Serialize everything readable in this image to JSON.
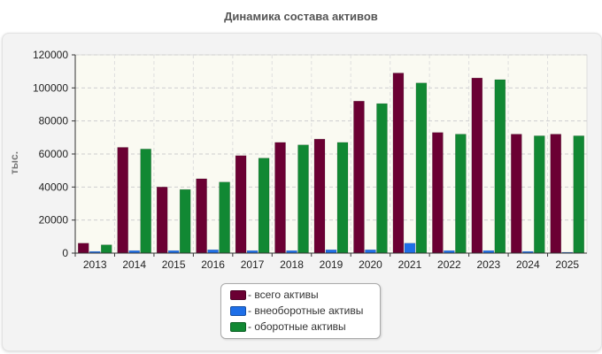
{
  "chart_data": {
    "type": "bar",
    "title": "Динамика состава активов",
    "xlabel": "",
    "ylabel": "тыс.",
    "categories": [
      "2013",
      "2014",
      "2015",
      "2016",
      "2017",
      "2018",
      "2019",
      "2020",
      "2021",
      "2022",
      "2023",
      "2024",
      "2025"
    ],
    "ylim": [
      0,
      120000
    ],
    "yticks": [
      0,
      20000,
      40000,
      60000,
      80000,
      100000,
      120000
    ],
    "grid": true,
    "legend_position": "bottom-center",
    "series": [
      {
        "name": "- всего активы",
        "color": "#6b0033",
        "values": [
          6000,
          64000,
          40000,
          45000,
          59000,
          67000,
          69000,
          92000,
          109000,
          73000,
          106000,
          72000,
          72000
        ]
      },
      {
        "name": "- внеоборотные активы",
        "color": "#1e6fe8",
        "values": [
          1000,
          1500,
          1500,
          2000,
          1500,
          1500,
          2000,
          2000,
          6000,
          1500,
          1500,
          1000,
          500
        ]
      },
      {
        "name": "- оборотные активы",
        "color": "#118833",
        "values": [
          5000,
          63000,
          38500,
          43000,
          57500,
          65500,
          67000,
          90500,
          103000,
          72000,
          105000,
          71000,
          71000
        ]
      }
    ]
  }
}
